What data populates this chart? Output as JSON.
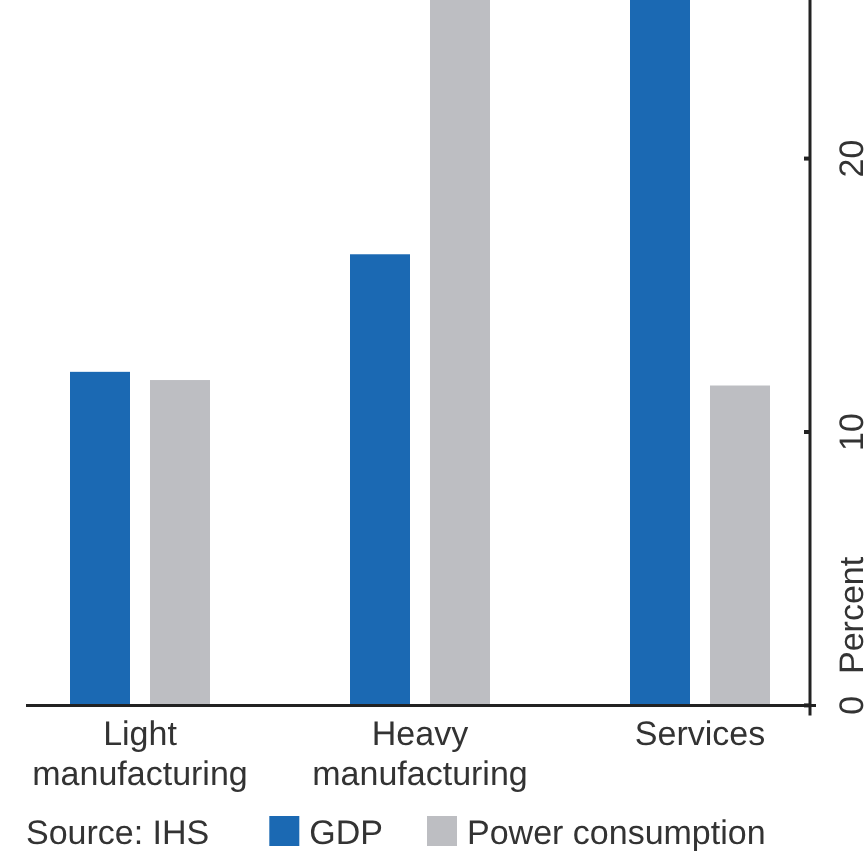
{
  "chart_data": {
    "type": "bar",
    "categories": [
      "Light manufacturing",
      "Heavy manufacturing",
      "Services"
    ],
    "series": [
      {
        "name": "GDP",
        "color": "#1b69b3",
        "values": [
          12.2,
          16.5,
          25.8
        ]
      },
      {
        "name": "Power consumption",
        "color": "#bdbec2",
        "values": [
          11.9,
          25.8,
          11.7
        ]
      }
    ],
    "ylabel": "Percent",
    "ylim": [
      0,
      25.8
    ],
    "yticks": [
      0,
      10,
      20
    ],
    "grid": false,
    "legend": "bottom",
    "annotations": [
      "Source: IHS"
    ]
  }
}
